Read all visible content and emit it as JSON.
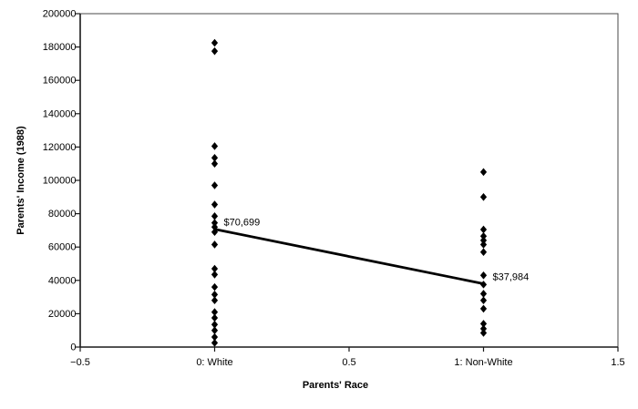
{
  "chart_data": {
    "type": "scatter",
    "xlabel": "Parents' Race",
    "ylabel": "Parents' Income (1988)",
    "xlim": [
      -0.5,
      1.5
    ],
    "ylim": [
      0,
      200000
    ],
    "grid": false,
    "legend": false,
    "marker": "diamond",
    "marker_color": "#000000",
    "x_ticks": [
      {
        "value": -0.5,
        "label": "−0.5"
      },
      {
        "value": 0,
        "label": "0: White"
      },
      {
        "value": 0.5,
        "label": "0.5"
      },
      {
        "value": 1,
        "label": "1: Non-White"
      },
      {
        "value": 1.5,
        "label": "1.5"
      }
    ],
    "y_ticks": [
      {
        "value": 0,
        "label": "0"
      },
      {
        "value": 20000,
        "label": "20000"
      },
      {
        "value": 40000,
        "label": "40000"
      },
      {
        "value": 60000,
        "label": "60000"
      },
      {
        "value": 80000,
        "label": "80000"
      },
      {
        "value": 100000,
        "label": "100000"
      },
      {
        "value": 120000,
        "label": "120000"
      },
      {
        "value": 140000,
        "label": "140000"
      },
      {
        "value": 160000,
        "label": "160000"
      },
      {
        "value": 180000,
        "label": "180000"
      },
      {
        "value": 200000,
        "label": "200000"
      }
    ],
    "series": [
      {
        "name": "0: White",
        "x": 0,
        "values": [
          182500,
          177500,
          120500,
          113500,
          110000,
          97000,
          85500,
          78500,
          74500,
          72000,
          69000,
          61500,
          47000,
          43500,
          36000,
          31500,
          28000,
          21000,
          17500,
          13500,
          10000,
          6000,
          2500
        ]
      },
      {
        "name": "1: Non-White",
        "x": 1,
        "values": [
          105000,
          90000,
          70500,
          66500,
          64000,
          61500,
          57000,
          43000,
          37500,
          32000,
          28000,
          23000,
          14000,
          11000,
          8500
        ]
      }
    ],
    "trend_line": {
      "x1": 0,
      "y1": 70699,
      "x2": 1,
      "y2": 37984,
      "color": "#000000"
    },
    "annotations": [
      {
        "text": "$70,699",
        "x": 0,
        "y": 70699
      },
      {
        "text": "$37,984",
        "x": 1,
        "y": 37984
      }
    ]
  },
  "colors": {
    "background": "#ffffff",
    "axis": "#1a1a1a",
    "plot_border": "#4a4a4a",
    "marker": "#000000",
    "text": "#000000"
  }
}
